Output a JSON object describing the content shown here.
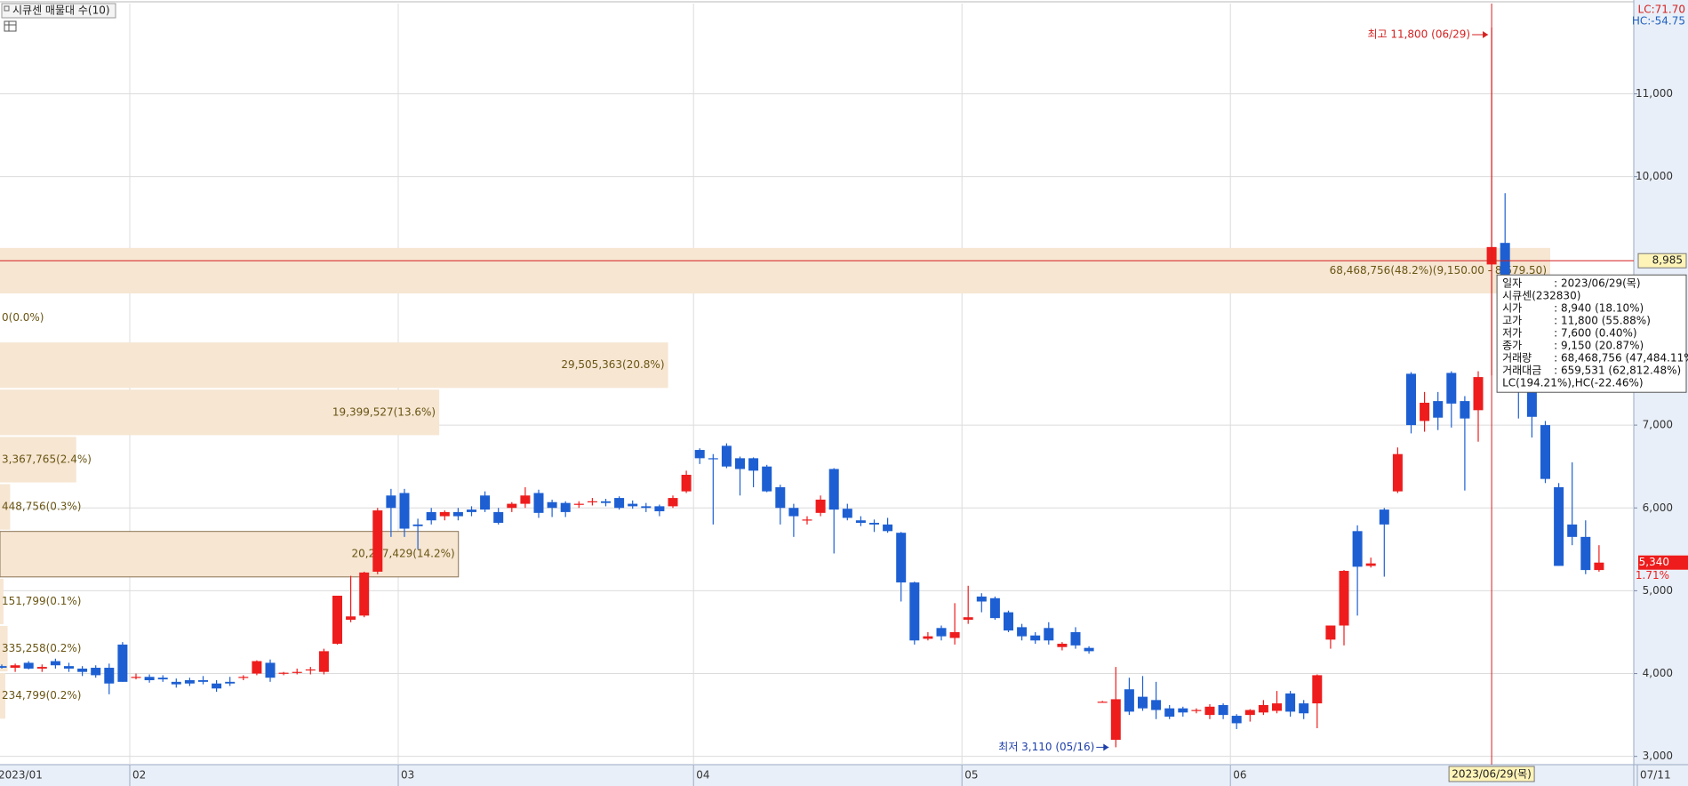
{
  "chart_data": {
    "type": "candlestick",
    "title": "시큐센 매물대 수(10)",
    "lc": "LC:71.70",
    "hc": "HC:-54.75",
    "high_note": "최고 11,800 (06/29)",
    "low_note": "최저 3,110 (05/16)",
    "up_color": "#ee1c1c",
    "down_color": "#1d5fd2",
    "grid": true,
    "ylim": [
      2900,
      12090
    ],
    "yticks": [
      {
        "value": 3000,
        "label": "3,000"
      },
      {
        "value": 4000,
        "label": "4,000"
      },
      {
        "value": 5000,
        "label": "5,000"
      },
      {
        "value": 6000,
        "label": "6,000"
      },
      {
        "value": 7000,
        "label": "7,000"
      },
      {
        "value": 10000,
        "label": "10,000"
      },
      {
        "value": 11000,
        "label": "11,000"
      }
    ],
    "categories": [
      "2023/01",
      null,
      null,
      null,
      null,
      null,
      null,
      null,
      null,
      null,
      "02",
      null,
      null,
      null,
      null,
      null,
      null,
      null,
      null,
      null,
      null,
      null,
      null,
      null,
      null,
      null,
      null,
      null,
      null,
      null,
      "03",
      null,
      null,
      null,
      null,
      null,
      null,
      null,
      null,
      null,
      null,
      null,
      null,
      null,
      null,
      null,
      null,
      null,
      null,
      null,
      null,
      null,
      "04",
      null,
      null,
      null,
      null,
      null,
      null,
      null,
      null,
      null,
      null,
      null,
      null,
      null,
      null,
      null,
      null,
      null,
      null,
      null,
      "05",
      null,
      null,
      null,
      null,
      null,
      null,
      null,
      null,
      null,
      null,
      null,
      null,
      null,
      null,
      null,
      null,
      null,
      null,
      null,
      "06",
      null,
      null,
      null,
      null,
      null,
      null,
      null,
      null,
      null,
      null,
      null,
      null,
      null,
      null,
      null,
      null,
      null,
      null,
      null,
      null,
      null,
      null,
      null,
      null,
      null,
      null,
      "07/11"
    ],
    "ohlc": [
      [
        4090,
        4110,
        4060,
        4070
      ],
      [
        4070,
        4120,
        4020,
        4100
      ],
      [
        4130,
        4150,
        4050,
        4060
      ],
      [
        4060,
        4110,
        4020,
        4080
      ],
      [
        4150,
        4180,
        4060,
        4100
      ],
      [
        4090,
        4130,
        4020,
        4060
      ],
      [
        4060,
        4090,
        3970,
        4020
      ],
      [
        4070,
        4100,
        3950,
        3980
      ],
      [
        4070,
        4120,
        3750,
        3880
      ],
      [
        4350,
        4380,
        3900,
        3900
      ],
      [
        3950,
        4000,
        3930,
        3960
      ],
      [
        3960,
        3990,
        3890,
        3920
      ],
      [
        3950,
        3980,
        3900,
        3930
      ],
      [
        3900,
        3940,
        3830,
        3870
      ],
      [
        3920,
        3950,
        3850,
        3880
      ],
      [
        3920,
        3970,
        3870,
        3900
      ],
      [
        3880,
        3920,
        3780,
        3820
      ],
      [
        3900,
        3960,
        3850,
        3880
      ],
      [
        3950,
        3980,
        3920,
        3960
      ],
      [
        4000,
        4160,
        3980,
        4150
      ],
      [
        4130,
        4170,
        3900,
        3950
      ],
      [
        4000,
        4020,
        3980,
        4010
      ],
      [
        4010,
        4060,
        3990,
        4020
      ],
      [
        4040,
        4080,
        3990,
        4050
      ],
      [
        4020,
        4300,
        3990,
        4270
      ],
      [
        4360,
        4940,
        4350,
        4940
      ],
      [
        4650,
        5180,
        4620,
        4690
      ],
      [
        4700,
        5230,
        4680,
        5220
      ],
      [
        5230,
        6000,
        5200,
        5970
      ],
      [
        6150,
        6230,
        5650,
        6000
      ],
      [
        6180,
        6230,
        5650,
        5750
      ],
      [
        5800,
        5870,
        5500,
        5780
      ],
      [
        5950,
        6000,
        5800,
        5850
      ],
      [
        5900,
        5970,
        5850,
        5950
      ],
      [
        5950,
        6000,
        5850,
        5900
      ],
      [
        5980,
        6020,
        5900,
        5950
      ],
      [
        6150,
        6200,
        5950,
        5980
      ],
      [
        5950,
        6000,
        5800,
        5820
      ],
      [
        6000,
        6070,
        5950,
        6050
      ],
      [
        6050,
        6250,
        6000,
        6150
      ],
      [
        6180,
        6220,
        5880,
        5940
      ],
      [
        6070,
        6100,
        5890,
        6000
      ],
      [
        6060,
        6080,
        5890,
        5950
      ],
      [
        6040,
        6080,
        6000,
        6050
      ],
      [
        6070,
        6120,
        6030,
        6080
      ],
      [
        6080,
        6110,
        6020,
        6060
      ],
      [
        6120,
        6140,
        5980,
        6000
      ],
      [
        6050,
        6090,
        5990,
        6020
      ],
      [
        6020,
        6060,
        5950,
        6000
      ],
      [
        6020,
        6040,
        5900,
        5960
      ],
      [
        6020,
        6150,
        6000,
        6120
      ],
      [
        6200,
        6450,
        6180,
        6400
      ],
      [
        6700,
        6720,
        6530,
        6600
      ],
      [
        6600,
        6650,
        5800,
        6590
      ],
      [
        6750,
        6780,
        6480,
        6500
      ],
      [
        6600,
        6620,
        6150,
        6470
      ],
      [
        6600,
        6610,
        6250,
        6450
      ],
      [
        6500,
        6520,
        6190,
        6200
      ],
      [
        6250,
        6280,
        5800,
        6000
      ],
      [
        6000,
        6050,
        5650,
        5900
      ],
      [
        5850,
        5900,
        5800,
        5860
      ],
      [
        5940,
        6150,
        5900,
        6100
      ],
      [
        6470,
        6480,
        5450,
        5980
      ],
      [
        5990,
        6050,
        5850,
        5880
      ],
      [
        5850,
        5900,
        5780,
        5820
      ],
      [
        5820,
        5860,
        5710,
        5800
      ],
      [
        5800,
        5880,
        5700,
        5720
      ],
      [
        5700,
        5710,
        4870,
        5100
      ],
      [
        5100,
        5110,
        4350,
        4400
      ],
      [
        4420,
        4500,
        4400,
        4450
      ],
      [
        4550,
        4580,
        4400,
        4450
      ],
      [
        4430,
        4850,
        4350,
        4500
      ],
      [
        4650,
        5060,
        4600,
        4680
      ],
      [
        4930,
        4970,
        4740,
        4870
      ],
      [
        4910,
        4930,
        4650,
        4670
      ],
      [
        4740,
        4760,
        4500,
        4520
      ],
      [
        4560,
        4600,
        4400,
        4450
      ],
      [
        4460,
        4500,
        4360,
        4400
      ],
      [
        4550,
        4620,
        4350,
        4400
      ],
      [
        4320,
        4380,
        4280,
        4360
      ],
      [
        4500,
        4560,
        4300,
        4340
      ],
      [
        4310,
        4330,
        4240,
        4270
      ],
      [
        3660,
        3670,
        3650,
        3660
      ],
      [
        3200,
        4080,
        3110,
        3690
      ],
      [
        3810,
        3950,
        3500,
        3540
      ],
      [
        3720,
        3970,
        3550,
        3580
      ],
      [
        3680,
        3900,
        3450,
        3560
      ],
      [
        3580,
        3620,
        3450,
        3480
      ],
      [
        3580,
        3600,
        3480,
        3530
      ],
      [
        3560,
        3580,
        3520,
        3560
      ],
      [
        3500,
        3630,
        3450,
        3600
      ],
      [
        3620,
        3640,
        3450,
        3500
      ],
      [
        3490,
        3510,
        3330,
        3400
      ],
      [
        3500,
        3570,
        3420,
        3560
      ],
      [
        3530,
        3680,
        3500,
        3620
      ],
      [
        3550,
        3790,
        3520,
        3640
      ],
      [
        3760,
        3790,
        3480,
        3540
      ],
      [
        3640,
        3680,
        3450,
        3520
      ],
      [
        3640,
        3990,
        3340,
        3980
      ],
      [
        4410,
        4580,
        4300,
        4580
      ],
      [
        4580,
        5250,
        4340,
        5240
      ],
      [
        5720,
        5790,
        4700,
        5290
      ],
      [
        5300,
        5400,
        5280,
        5330
      ],
      [
        5980,
        6000,
        5170,
        5800
      ],
      [
        6200,
        6730,
        6180,
        6650
      ],
      [
        7620,
        7640,
        6900,
        7000
      ],
      [
        7050,
        7400,
        6920,
        7270
      ],
      [
        7290,
        7400,
        6940,
        7090
      ],
      [
        7630,
        7650,
        6970,
        7260
      ],
      [
        7290,
        7350,
        6210,
        7080
      ],
      [
        7180,
        7650,
        6800,
        7580
      ],
      [
        8940,
        11800,
        7600,
        9150
      ],
      [
        9200,
        9800,
        8000,
        8100
      ],
      [
        7600,
        7800,
        7080,
        7400
      ],
      [
        7400,
        7500,
        6850,
        7100
      ],
      [
        7000,
        7050,
        6300,
        6350
      ],
      [
        6250,
        6300,
        5300,
        5300
      ],
      [
        5800,
        6550,
        5550,
        5650
      ],
      [
        5650,
        5850,
        5200,
        5250
      ],
      [
        5250,
        5550,
        5230,
        5340
      ]
    ],
    "volume_profile": {
      "high": 9150,
      "low": 8579.5,
      "volumes": [
        68468756,
        0,
        29505363,
        19399527,
        3367765,
        448756,
        20247429,
        151799,
        335258,
        234799
      ],
      "value_labels": [
        "68,468,756(48.2%)(9,150.00 - 8,579.50)",
        "0(0.0%)",
        "29,505,363(20.8%)",
        "19,399,527(13.6%)",
        "3,367,765(2.4%)",
        "448,756(0.3%)",
        "20,247,429(14.2%)",
        "151,799(0.1%)",
        "335,258(0.2%)",
        "234,799(0.2%)"
      ],
      "color": "#f6e6d2"
    },
    "crosshair": {
      "date": "2023/06/29(목)",
      "price": {
        "value": 8985,
        "label": "8,985"
      }
    },
    "last_price": {
      "value": 5340,
      "label": "5,340"
    },
    "change": "1.71%",
    "tooltip": {
      "date_row": [
        "일자",
        ": 2023/06/29(목)"
      ],
      "name": "시큐센(232830)",
      "rows": [
        [
          "시가",
          ": 8,940 (18.10%)"
        ],
        [
          "고가",
          ": 11,800 (55.88%)"
        ],
        [
          "저가",
          ": 7,600 (0.40%)"
        ],
        [
          "종가",
          ": 9,150 (20.87%)"
        ],
        [
          "거래량",
          ": 68,468,756 (47,484.11%)"
        ],
        [
          "거래대금",
          ": 659,531 (62,812.48%)"
        ]
      ],
      "footer": "LC(194.21%),HC(-22.46%)"
    }
  }
}
